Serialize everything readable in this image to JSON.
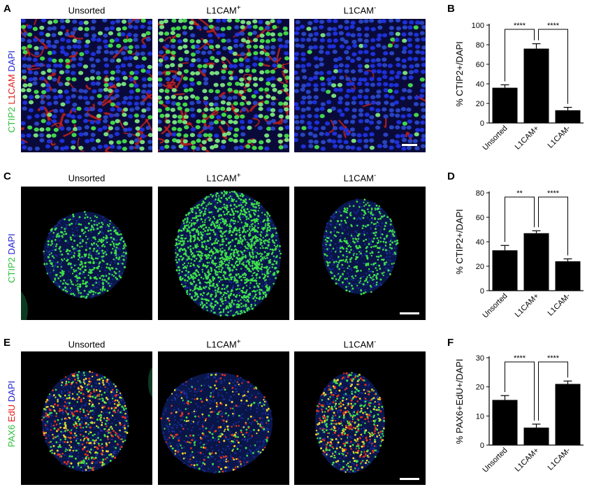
{
  "panels": {
    "A": "A",
    "B": "B",
    "C": "C",
    "D": "D",
    "E": "E",
    "F": "F"
  },
  "conditions": [
    "Unsorted",
    "L1CAM",
    "L1CAM"
  ],
  "superscripts": [
    "",
    "+",
    "-"
  ],
  "row_labels": {
    "A": [
      {
        "text": "CTIP2",
        "color": "#2fbf3a"
      },
      {
        "text": " L1CAM",
        "color": "#e0201a"
      },
      {
        "text": " DAPI",
        "color": "#2020d0"
      }
    ],
    "C": [
      {
        "text": "CTIP2",
        "color": "#2fbf3a"
      },
      {
        "text": " DAPI",
        "color": "#2020d0"
      }
    ],
    "E": [
      {
        "text": "PAX6",
        "color": "#2fbf3a"
      },
      {
        "text": " EdU",
        "color": "#e0201a"
      },
      {
        "text": " DAPI",
        "color": "#2020d0"
      }
    ]
  },
  "colors": {
    "dapi": "#1f2fd6",
    "ctip2": "#3ddc4a",
    "l1cam": "#e02a1a",
    "edu": "#e0301a",
    "bar": "#000000"
  },
  "chart_data": [
    {
      "type": "bar",
      "panel": "B",
      "categories": [
        "Unsorted",
        "L1CAM+",
        "L1CAM-"
      ],
      "values": [
        36,
        76,
        13
      ],
      "errors": [
        3,
        5,
        3
      ],
      "ylabel": "% CTIP2+/DAPI",
      "ylim": [
        0,
        100
      ],
      "yticks": [
        0,
        20,
        40,
        60,
        80,
        100
      ],
      "significance": [
        {
          "from": 0,
          "to": 1,
          "label": "****"
        },
        {
          "from": 1,
          "to": 2,
          "label": "****"
        }
      ]
    },
    {
      "type": "bar",
      "panel": "D",
      "categories": [
        "Unsorted",
        "L1CAM+",
        "L1CAM-"
      ],
      "values": [
        33,
        47,
        24
      ],
      "errors": [
        4,
        2,
        2
      ],
      "ylabel": "% CTIP2+/DAPI",
      "ylim": [
        0,
        80
      ],
      "yticks": [
        0,
        20,
        40,
        60,
        80
      ],
      "significance": [
        {
          "from": 0,
          "to": 1,
          "label": "**"
        },
        {
          "from": 1,
          "to": 2,
          "label": "****"
        }
      ]
    },
    {
      "type": "bar",
      "panel": "F",
      "categories": [
        "Unsorted",
        "L1CAM+",
        "L1CAM-"
      ],
      "values": [
        15.5,
        6,
        21
      ],
      "errors": [
        1.5,
        1.2,
        1
      ],
      "ylabel": "% PAX6+EdU+/DAPI",
      "ylim": [
        0,
        30
      ],
      "yticks": [
        0,
        10,
        20,
        30
      ],
      "significance": [
        {
          "from": 0,
          "to": 1,
          "label": "****"
        },
        {
          "from": 1,
          "to": 2,
          "label": "****"
        }
      ]
    }
  ]
}
